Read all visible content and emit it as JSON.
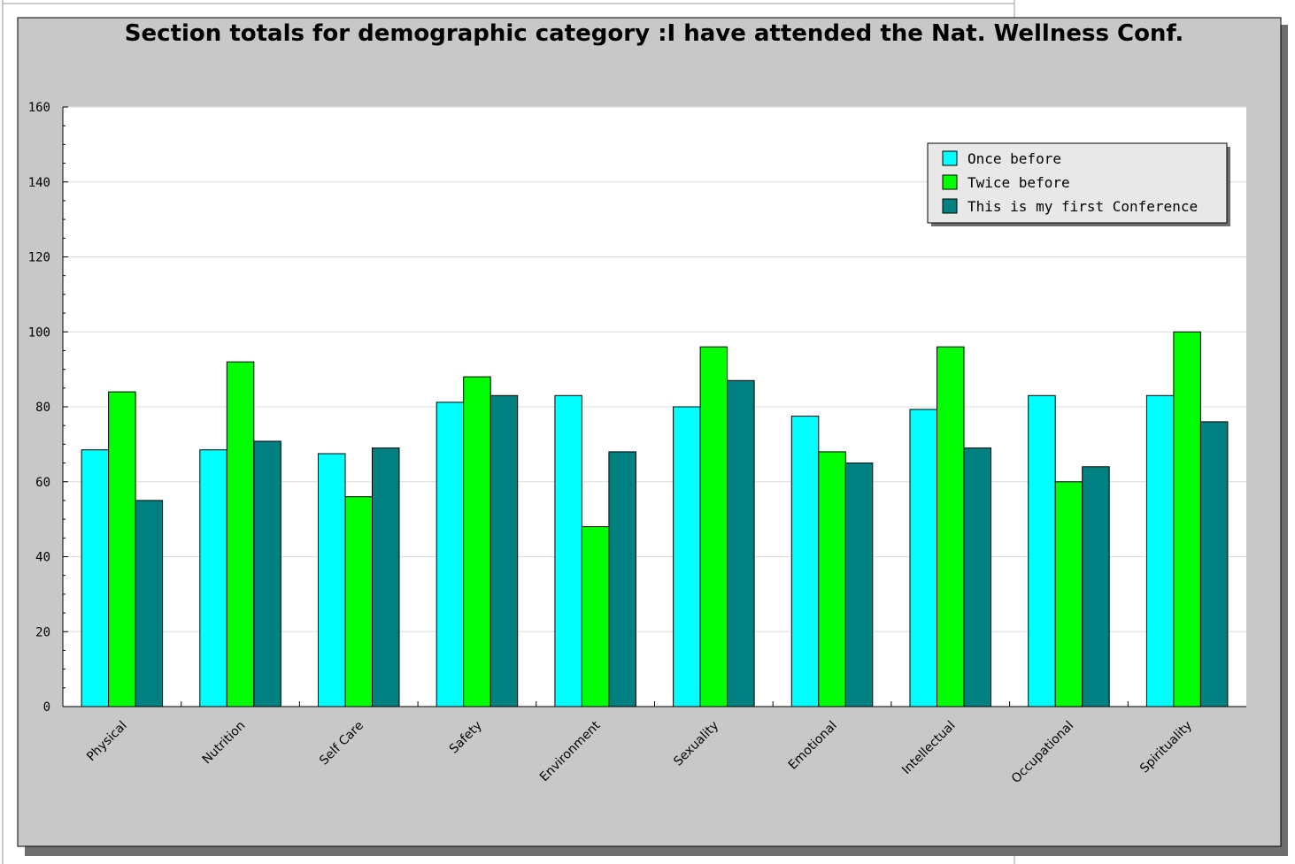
{
  "chart_data": {
    "type": "bar",
    "title": "Section totals for demographic category :I have attended the Nat. Wellness Conf.",
    "xlabel": "",
    "ylabel": "",
    "ylim": [
      0,
      160
    ],
    "yticks": [
      0,
      20,
      40,
      60,
      80,
      100,
      120,
      140,
      160
    ],
    "grid": true,
    "legend_position": "top-right",
    "categories": [
      "Physical",
      "Nutrition",
      "Self Care",
      "Safety",
      "Environment",
      "Sexuality",
      "Emotional",
      "Intellectual",
      "Occupational",
      "Spirituality"
    ],
    "series": [
      {
        "name": "Once before",
        "color": "#00ffff",
        "values": [
          68.5,
          68.5,
          67.5,
          81.2,
          83,
          80,
          77.5,
          79.3,
          83,
          83
        ]
      },
      {
        "name": "Twice before",
        "color": "#00ff00",
        "values": [
          84,
          92,
          56,
          88,
          48,
          96,
          68,
          96,
          60,
          100
        ]
      },
      {
        "name": "This is my first Conference",
        "color": "#008080",
        "values": [
          55,
          70.8,
          69,
          83,
          68,
          87,
          65,
          69,
          64,
          76
        ]
      }
    ]
  },
  "colors": {
    "frame_background": "#c8c8c8",
    "plot_background": "#ffffff",
    "gridline": "#dcdcdc",
    "shadow": "#6e6e6e"
  }
}
